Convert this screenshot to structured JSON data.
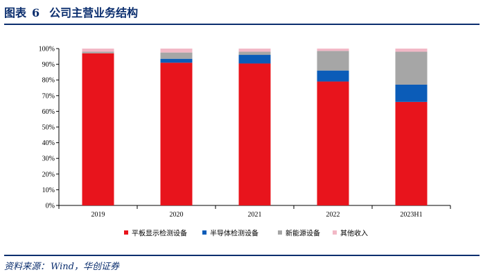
{
  "figure": {
    "label": "图表",
    "number": "6",
    "title": "公司主营业务结构"
  },
  "source": {
    "label": "资料来源：",
    "text": "Wind，华创证券"
  },
  "chart_data": {
    "type": "bar",
    "stacked": true,
    "categories": [
      "2019",
      "2020",
      "2021",
      "2022",
      "2023H1"
    ],
    "series": [
      {
        "name": "平板显示检测设备",
        "color": "#e8141c",
        "values": [
          97,
          91,
          90.5,
          79,
          66
        ]
      },
      {
        "name": "半导体检测设备",
        "color": "#0b5cb8",
        "values": [
          0,
          2.5,
          5.5,
          7,
          11
        ]
      },
      {
        "name": "新能源设备",
        "color": "#a6a6a6",
        "values": [
          1,
          4,
          2,
          12.5,
          21
        ]
      },
      {
        "name": "其他收入",
        "color": "#f2b8c6",
        "values": [
          2,
          2.5,
          2,
          1.5,
          2
        ]
      }
    ],
    "yticks": [
      "0%",
      "10%",
      "20%",
      "30%",
      "40%",
      "50%",
      "60%",
      "70%",
      "80%",
      "90%",
      "100%"
    ],
    "ylim": [
      0,
      100
    ],
    "legend_position": "bottom",
    "grid": false
  }
}
